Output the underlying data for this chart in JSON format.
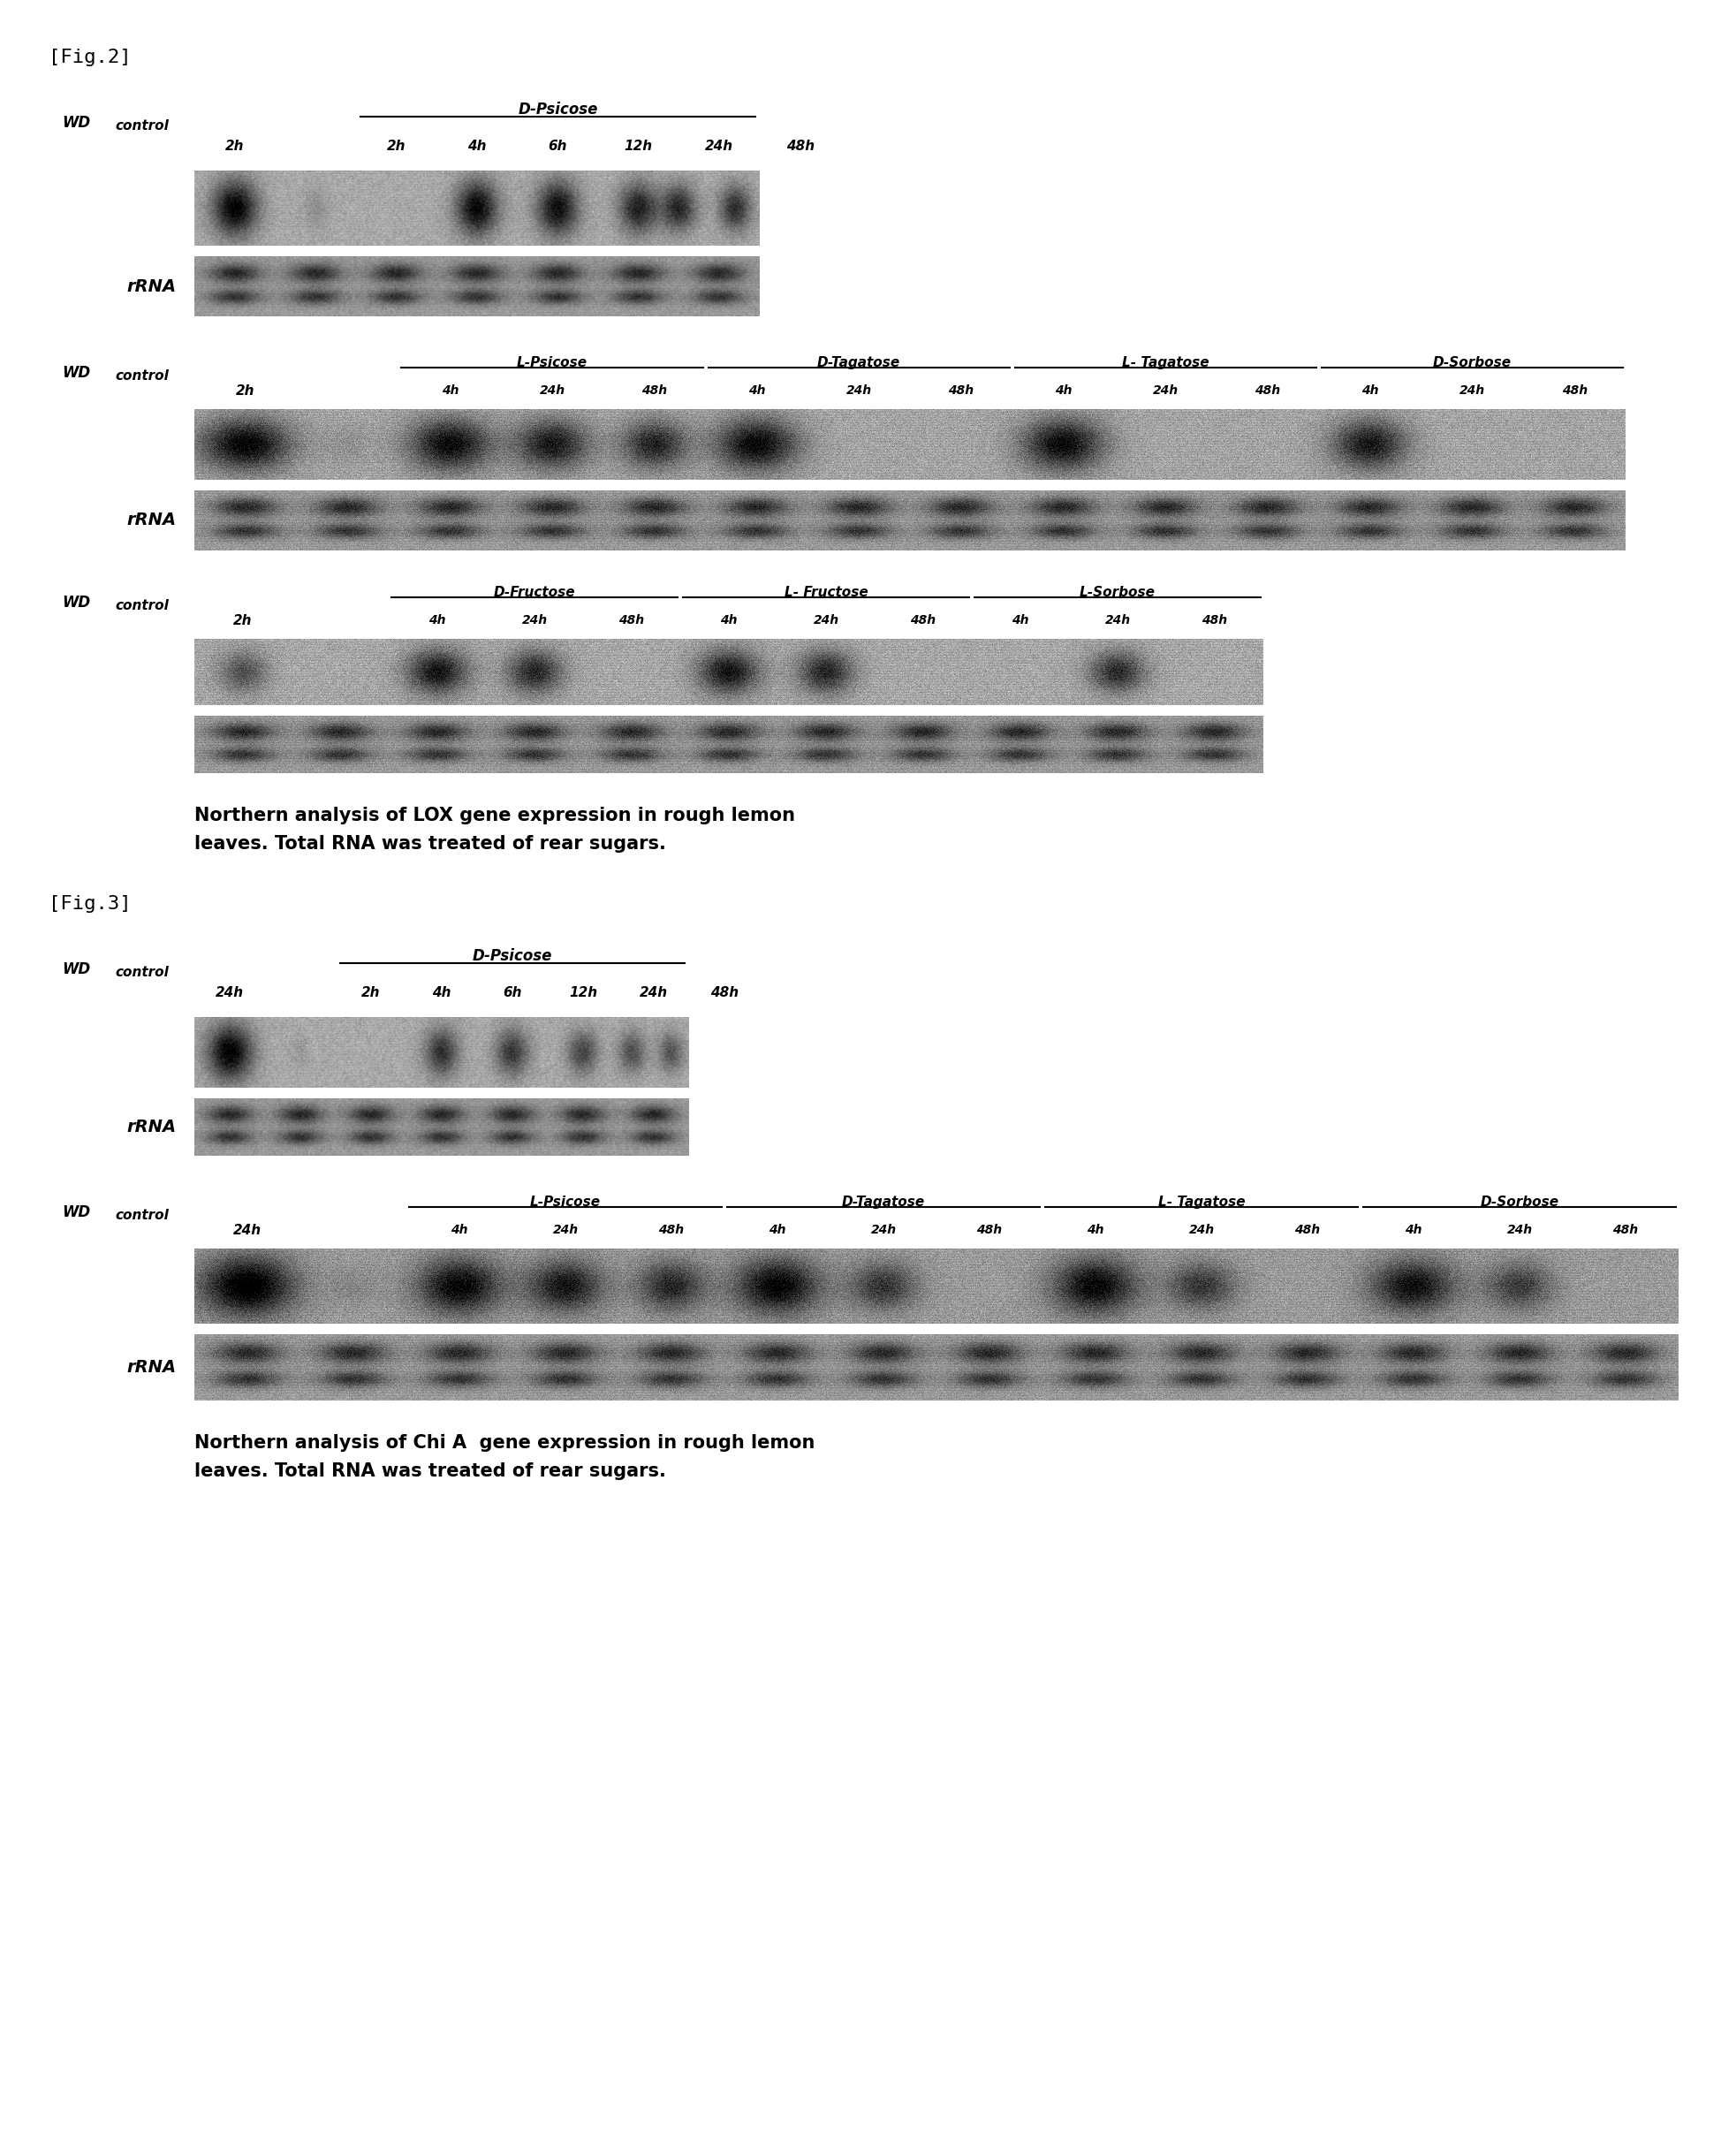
{
  "fig2_label": "[Fig.2]",
  "fig3_label": "[Fig.3]",
  "fig2_caption_line1": "Northern analysis of LOX gene expression in rough lemon",
  "fig2_caption_line2": "leaves. Total RNA was treated of rear sugars.",
  "fig3_caption_line1": "Northern analysis of Chi A  gene expression in rough lemon",
  "fig3_caption_line2": "leaves. Total RNA was treated of rear sugars.",
  "rrna_label": "rRNA",
  "background": "#ffffff"
}
